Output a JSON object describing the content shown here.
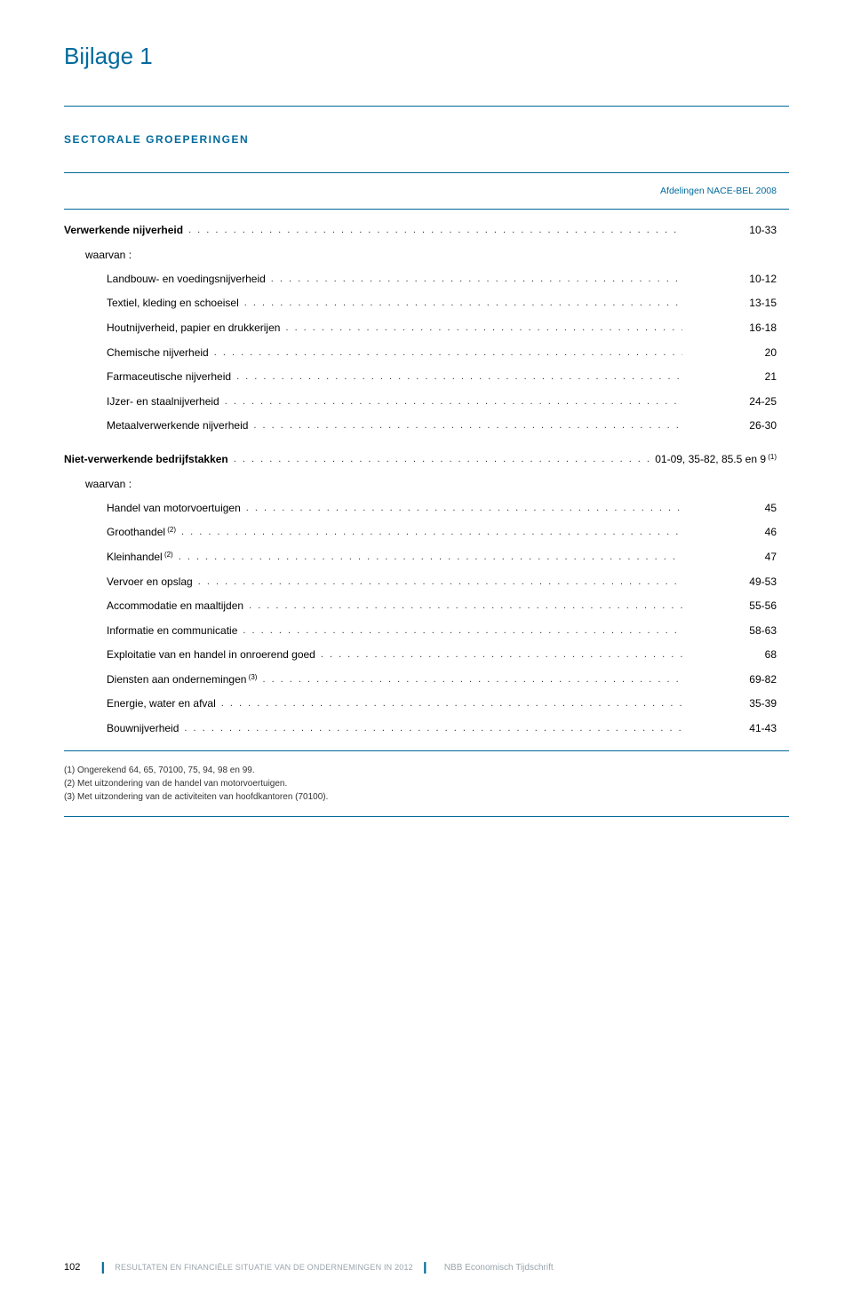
{
  "page_title": "Bijlage 1",
  "section_title": "SECTORALE GROEPERINGEN",
  "header_label": "Afdelingen NACE-BEL 2008",
  "colors": {
    "accent": "#006a9c",
    "text": "#000000",
    "muted": "#9aa5ad",
    "background": "#ffffff"
  },
  "rows": [
    {
      "label": "Verwerkende nijverheid",
      "value": "10-33",
      "indent": 0,
      "bold": true,
      "dots": true
    },
    {
      "label": "waarvan :",
      "value": "",
      "indent": 1,
      "bold": false,
      "dots": false
    },
    {
      "label": "Landbouw- en voedingsnijverheid",
      "value": "10-12",
      "indent": 2,
      "bold": false,
      "dots": true
    },
    {
      "label": "Textiel, kleding en schoeisel",
      "value": "13-15",
      "indent": 2,
      "bold": false,
      "dots": true
    },
    {
      "label": "Houtnijverheid, papier en drukkerijen",
      "value": "16-18",
      "indent": 2,
      "bold": false,
      "dots": true
    },
    {
      "label": "Chemische nijverheid",
      "value": "20",
      "indent": 2,
      "bold": false,
      "dots": true
    },
    {
      "label": "Farmaceutische nijverheid",
      "value": "21",
      "indent": 2,
      "bold": false,
      "dots": true
    },
    {
      "label": "IJzer- en staalnijverheid",
      "value": "24-25",
      "indent": 2,
      "bold": false,
      "dots": true
    },
    {
      "label": "Metaalverwerkende nijverheid",
      "value": "26-30",
      "indent": 2,
      "bold": false,
      "dots": true
    },
    {
      "spacer": true
    },
    {
      "label": "Niet-verwerkende bedrijfstakken",
      "value": "01-09, 35-82, 85.5 en 9",
      "value_sup": "(1)",
      "indent": 0,
      "bold": true,
      "dots": true
    },
    {
      "label": "waarvan :",
      "value": "",
      "indent": 1,
      "bold": false,
      "dots": false
    },
    {
      "label": "Handel van motorvoertuigen",
      "value": "45",
      "indent": 2,
      "bold": false,
      "dots": true
    },
    {
      "label": "Groothandel",
      "label_sup": "(2)",
      "value": "46",
      "indent": 2,
      "bold": false,
      "dots": true
    },
    {
      "label": "Kleinhandel",
      "label_sup": "(2)",
      "value": "47",
      "indent": 2,
      "bold": false,
      "dots": true
    },
    {
      "label": "Vervoer en opslag",
      "value": "49-53",
      "indent": 2,
      "bold": false,
      "dots": true
    },
    {
      "label": "Accommodatie en maaltijden",
      "value": "55-56",
      "indent": 2,
      "bold": false,
      "dots": true
    },
    {
      "label": "Informatie en communicatie",
      "value": "58-63",
      "indent": 2,
      "bold": false,
      "dots": true
    },
    {
      "label": "Exploitatie van en handel in onroerend goed",
      "value": "68",
      "indent": 2,
      "bold": false,
      "dots": true
    },
    {
      "label": "Diensten aan ondernemingen",
      "label_sup": "(3)",
      "value": "69-82",
      "indent": 2,
      "bold": false,
      "dots": true
    },
    {
      "label": "Energie, water en afval",
      "value": "35-39",
      "indent": 2,
      "bold": false,
      "dots": true
    },
    {
      "label": "Bouwnijverheid",
      "value": "41-43",
      "indent": 2,
      "bold": false,
      "dots": true
    }
  ],
  "footnotes": [
    "(1) Ongerekend 64, 65, 70100, 75, 94, 98 en 99.",
    "(2) Met uitzondering van de handel van motorvoertuigen.",
    "(3) Met uitzondering van de activiteiten van hoofdkantoren (70100)."
  ],
  "footer": {
    "page": "102",
    "left_text": "RESULTATEN EN FINANCIËLE SITUATIE VAN DE ONDERNEMINGEN IN 2012",
    "right_text": "NBB Economisch Tijdschrift"
  }
}
